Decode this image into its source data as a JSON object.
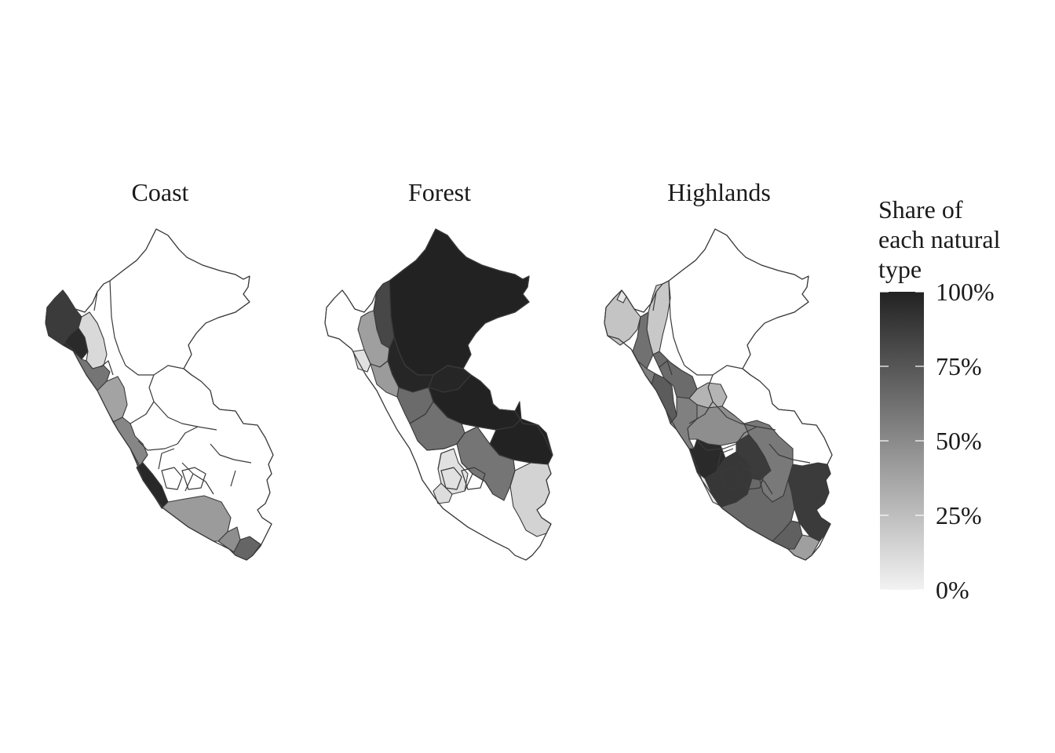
{
  "figure": {
    "panels": [
      {
        "key": "coast",
        "title": "Coast",
        "regions": [
          {
            "id": "tumbes-piura",
            "share": 0.88
          },
          {
            "id": "lambayeque",
            "share": 0.96
          },
          {
            "id": "cajamarca-west",
            "share": 0.12
          },
          {
            "id": "la-libertad",
            "share": 0.6
          },
          {
            "id": "ancash",
            "share": 0.38
          },
          {
            "id": "lima-north",
            "share": 0.52
          },
          {
            "id": "lima-south",
            "share": 0.58
          },
          {
            "id": "callao-lima",
            "share": 0.97
          },
          {
            "id": "ica-arequipa",
            "share": 0.42
          },
          {
            "id": "moquegua",
            "share": 0.48
          },
          {
            "id": "tacna",
            "share": 0.68
          }
        ]
      },
      {
        "key": "forest",
        "title": "Forest",
        "regions": [
          {
            "id": "loreto",
            "share": 1.0
          },
          {
            "id": "amazonas-east",
            "share": 0.82
          },
          {
            "id": "cajamarca",
            "share": 0.4
          },
          {
            "id": "lambayeque",
            "share": 0.08
          },
          {
            "id": "san-martin",
            "share": 0.98
          },
          {
            "id": "la-libertad",
            "share": 0.42
          },
          {
            "id": "huanuco",
            "share": 0.65
          },
          {
            "id": "ucayali",
            "share": 1.0
          },
          {
            "id": "pasco-junin",
            "share": 0.62
          },
          {
            "id": "ayacucho",
            "share": 0.1
          },
          {
            "id": "cusco",
            "share": 0.6
          },
          {
            "id": "madre-de-dios",
            "share": 1.0
          },
          {
            "id": "puno",
            "share": 0.15
          },
          {
            "id": "apurimac",
            "share": 0.08
          }
        ]
      },
      {
        "key": "highlands",
        "title": "Highlands",
        "regions": [
          {
            "id": "piura",
            "share": 0.22
          },
          {
            "id": "tumbes",
            "share": 0.06
          },
          {
            "id": "cajamarca",
            "share": 0.2
          },
          {
            "id": "amazonas",
            "share": 0.62
          },
          {
            "id": "la-libertad",
            "share": 0.55
          },
          {
            "id": "ancash",
            "share": 0.72
          },
          {
            "id": "huanuco",
            "share": 0.65
          },
          {
            "id": "pasco",
            "share": 0.3
          },
          {
            "id": "lima",
            "share": 0.55
          },
          {
            "id": "junin",
            "share": 0.48
          },
          {
            "id": "huancavelica",
            "share": 0.96
          },
          {
            "id": "ayacucho",
            "share": 0.9
          },
          {
            "id": "apurimac",
            "share": 0.88
          },
          {
            "id": "ica",
            "share": 0.06
          },
          {
            "id": "cusco",
            "share": 0.58
          },
          {
            "id": "puno",
            "share": 0.88
          },
          {
            "id": "arequipa",
            "share": 0.66
          },
          {
            "id": "moquegua",
            "share": 0.7
          },
          {
            "id": "tacna",
            "share": 0.4
          }
        ]
      }
    ],
    "legend": {
      "title_lines": [
        "Share of",
        "each natural",
        "type"
      ],
      "ticks": [
        {
          "value": 1.0,
          "label": "100%"
        },
        {
          "value": 0.75,
          "label": "75%"
        },
        {
          "value": 0.5,
          "label": "50%"
        },
        {
          "value": 0.25,
          "label": "25%"
        },
        {
          "value": 0.0,
          "label": "0%"
        }
      ],
      "color_low": "#f2f2f2",
      "color_high": "#222222"
    },
    "colors": {
      "empty_region": "#ffffff",
      "border": "#3a3a3a"
    }
  }
}
